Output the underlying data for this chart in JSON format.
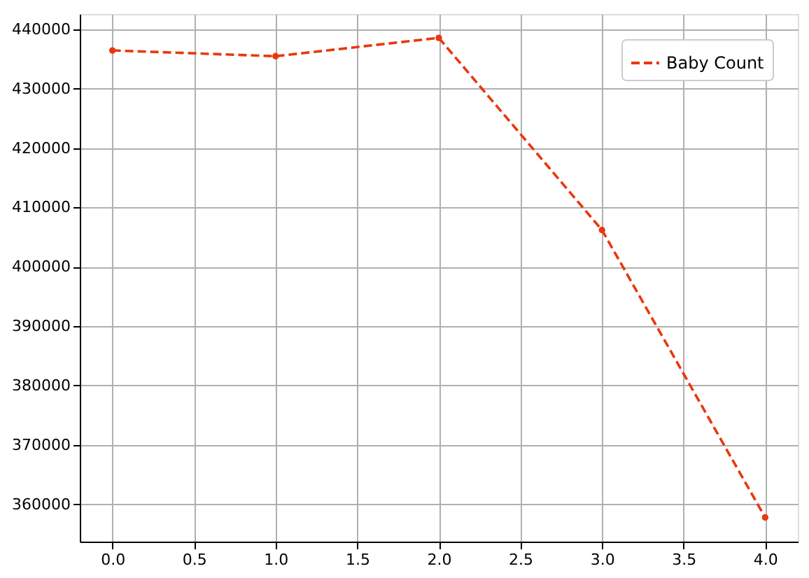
{
  "chart_data": {
    "type": "line",
    "x": [
      0,
      1,
      2,
      3,
      4
    ],
    "series": [
      {
        "name": "Baby Count",
        "color": "#e8380d",
        "values": [
          436460,
          435490,
          438580,
          406200,
          357770
        ]
      }
    ],
    "xlim": [
      -0.2,
      4.2
    ],
    "xticks": [
      {
        "value": 0,
        "label": "0.0"
      },
      {
        "value": 0.5,
        "label": "0.5"
      },
      {
        "value": 1,
        "label": "1.0"
      },
      {
        "value": 1.5,
        "label": "1.5"
      },
      {
        "value": 2,
        "label": "2.0"
      },
      {
        "value": 2.5,
        "label": "2.5"
      },
      {
        "value": 3,
        "label": "3.0"
      },
      {
        "value": 3.5,
        "label": "3.5"
      },
      {
        "value": 4,
        "label": "4.0"
      }
    ],
    "ylim": [
      353700,
      442600
    ],
    "yticks": [
      360000,
      370000,
      380000,
      390000,
      400000,
      410000,
      420000,
      430000,
      440000
    ],
    "grid": true,
    "legend": "top right",
    "marker": "circle",
    "line_style": "dashed"
  }
}
